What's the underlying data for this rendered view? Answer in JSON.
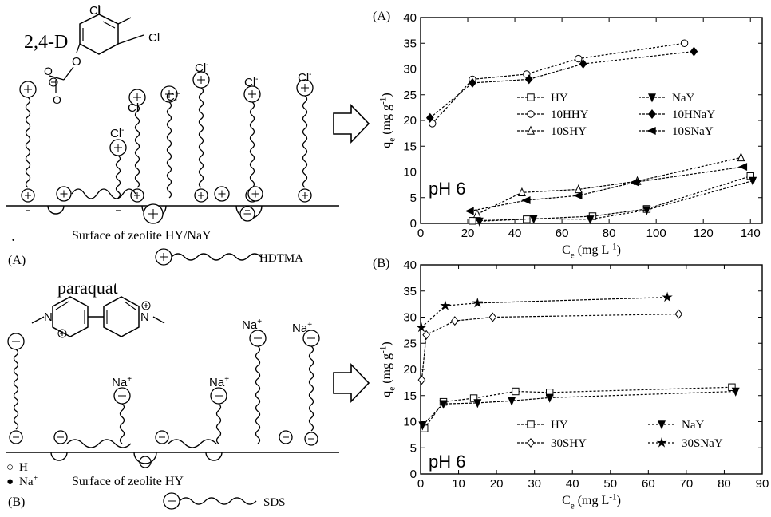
{
  "left_top": {
    "molecule_label": "2,4-D",
    "chloride": "Cl",
    "chloride_ion": "Cl",
    "oxygen": "O",
    "surface_label": "Surface of zeolite HY/NaY",
    "panel_label": "(A)",
    "surfactant_label": "HDTMA",
    "dot": "."
  },
  "left_bottom": {
    "molecule_label": "paraquat",
    "nitrogen": "N",
    "sodium_ion": "Na",
    "surface_label": "Surface of zeolite HY",
    "panel_label": "(B)",
    "surfactant_label": "SDS",
    "legend_h": "H",
    "legend_na": "Na",
    "legend_open_circle": "○",
    "legend_filled_circle": "●"
  },
  "arrows": {
    "count": 2
  },
  "chart_data": [
    {
      "type": "line",
      "panel_label": "(A)",
      "annotation": "pH 6",
      "xlabel": "C",
      "xlabel_sub": "e",
      "xlabel_unit": "(mg L",
      "xlabel_unit_sup": "-1",
      "xlabel_unit_end": ")",
      "ylabel": "q",
      "ylabel_sub": "e",
      "ylabel_unit": "(mg g",
      "ylabel_unit_sup": "-1",
      "ylabel_unit_end": ")",
      "xlim": [
        0,
        145
      ],
      "ylim": [
        0,
        40
      ],
      "xticks": [
        "0",
        "20",
        "40",
        "60",
        "80",
        "100",
        "120",
        "140"
      ],
      "yticks": [
        "0",
        "5",
        "10",
        "15",
        "20",
        "25",
        "30",
        "35",
        "40"
      ],
      "legend_position": "center-right",
      "series": [
        {
          "name": "HY",
          "marker": "square-open",
          "points": [
            [
              22,
              0.5
            ],
            [
              45,
              0.8
            ],
            [
              73,
              1.4
            ],
            [
              96,
              2.8
            ],
            [
              140,
              9.2
            ]
          ]
        },
        {
          "name": "NaY",
          "marker": "triangle-down-filled",
          "points": [
            [
              25,
              0.4
            ],
            [
              48,
              0.9
            ],
            [
              72,
              0.8
            ],
            [
              96,
              2.6
            ],
            [
              141,
              8.3
            ]
          ]
        },
        {
          "name": "10HHY",
          "marker": "circle-open",
          "points": [
            [
              5,
              19.4
            ],
            [
              22,
              28.0
            ],
            [
              45,
              29.0
            ],
            [
              67,
              32.0
            ],
            [
              112,
              35.0
            ]
          ]
        },
        {
          "name": "10HNaY",
          "marker": "diamond-filled",
          "points": [
            [
              4,
              20.5
            ],
            [
              22,
              27.3
            ],
            [
              46,
              28.0
            ],
            [
              69,
              31.0
            ],
            [
              116,
              33.4
            ]
          ]
        },
        {
          "name": "10SHY",
          "marker": "triangle-up-open",
          "points": [
            [
              24,
              1.8
            ],
            [
              43,
              6.0
            ],
            [
              67,
              6.6
            ],
            [
              92,
              8.2
            ],
            [
              136,
              12.8
            ]
          ]
        },
        {
          "name": "10SNaY",
          "marker": "triangle-left-filled",
          "points": [
            [
              21,
              2.4
            ],
            [
              45,
              4.5
            ],
            [
              67,
              5.4
            ],
            [
              91,
              8.0
            ],
            [
              137,
              11.0
            ]
          ]
        }
      ]
    },
    {
      "type": "line",
      "panel_label": "(B)",
      "annotation": "pH 6",
      "xlabel": "C",
      "xlabel_sub": "e",
      "xlabel_unit": "(mg L",
      "xlabel_unit_sup": "-1",
      "xlabel_unit_end": ")",
      "ylabel": "q",
      "ylabel_sub": "e",
      "ylabel_unit": "(mg g",
      "ylabel_unit_sup": "-1",
      "ylabel_unit_end": ")",
      "xlim": [
        0,
        90
      ],
      "ylim": [
        0,
        40
      ],
      "xticks": [
        "0",
        "10",
        "20",
        "30",
        "40",
        "50",
        "60",
        "70",
        "80",
        "90"
      ],
      "yticks": [
        "0",
        "5",
        "10",
        "15",
        "20",
        "25",
        "30",
        "35",
        "40"
      ],
      "legend_position": "bottom",
      "series": [
        {
          "name": "HY",
          "marker": "square-open",
          "points": [
            [
              1,
              8.7
            ],
            [
              6,
              13.8
            ],
            [
              14,
              14.5
            ],
            [
              25,
              15.8
            ],
            [
              34,
              15.6
            ],
            [
              82,
              16.6
            ]
          ]
        },
        {
          "name": "NaY",
          "marker": "triangle-down-filled",
          "points": [
            [
              0.5,
              9.3
            ],
            [
              6,
              13.4
            ],
            [
              15,
              13.6
            ],
            [
              24,
              14.0
            ],
            [
              34,
              14.6
            ],
            [
              83,
              15.8
            ]
          ]
        },
        {
          "name": "30SHY",
          "marker": "diamond-open",
          "points": [
            [
              0.3,
              18.0
            ],
            [
              1.5,
              26.6
            ],
            [
              9,
              29.3
            ],
            [
              19,
              30.0
            ],
            [
              68,
              30.6
            ]
          ]
        },
        {
          "name": "30SNaY",
          "marker": "star-filled",
          "points": [
            [
              0.2,
              28.0
            ],
            [
              6.5,
              32.2
            ],
            [
              15,
              32.7
            ],
            [
              65,
              33.8
            ]
          ]
        }
      ]
    }
  ]
}
